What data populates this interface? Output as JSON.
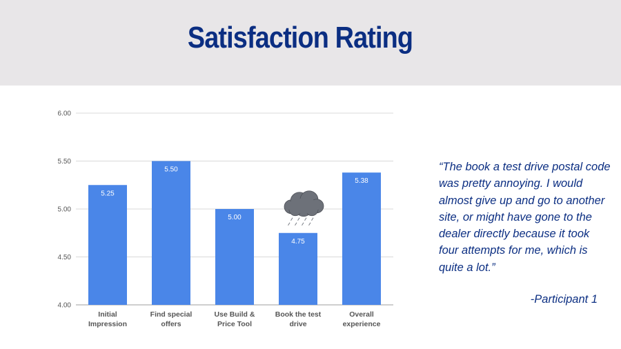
{
  "slide": {
    "title": "Satisfaction Rating",
    "quote": "“The book a test drive postal code was pretty annoying. I would almost give up and go to another site, or might have gone to the dealer directly because it took four attempts for me, which is quite a lot.”",
    "attribution": "-Participant 1",
    "colors": {
      "header_bg": "#e8e6e8",
      "title": "#0b2e82",
      "bar": "#4a86e8",
      "cloud": "#6d7179"
    }
  },
  "chart_data": {
    "type": "bar",
    "categories": [
      [
        "Initial",
        "Impression"
      ],
      [
        "Find special",
        "offers"
      ],
      [
        "Use Build &",
        "Price Tool"
      ],
      [
        "Book the test",
        "drive"
      ],
      [
        "Overall",
        "experience"
      ]
    ],
    "values": [
      5.25,
      5.5,
      5.0,
      4.75,
      5.38
    ],
    "value_labels": [
      "5.25",
      "5.50",
      "5.00",
      "4.75",
      "5.38"
    ],
    "ylim": [
      4.0,
      6.0
    ],
    "yticks": [
      4.0,
      4.5,
      5.0,
      5.5,
      6.0
    ],
    "ytick_labels": [
      "4.00",
      "4.50",
      "5.00",
      "5.50",
      "6.00"
    ],
    "grid": true,
    "legend": "none",
    "annotation": {
      "icon": "rain-cloud-icon",
      "category_index": 3
    }
  }
}
